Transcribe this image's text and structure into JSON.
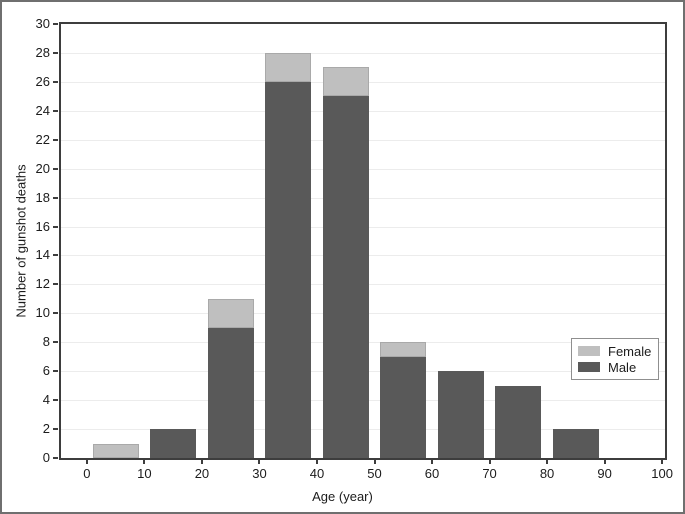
{
  "chart_data": {
    "type": "bar",
    "stacked": true,
    "categories": [
      "0-10",
      "10-20",
      "20-30",
      "30-40",
      "40-50",
      "50-60",
      "60-70",
      "70-80",
      "80-90"
    ],
    "series": [
      {
        "name": "Male",
        "color": "#595959",
        "values": [
          0,
          2,
          9,
          26,
          25,
          7,
          6,
          5,
          2
        ]
      },
      {
        "name": "Female",
        "color": "#bfbfbf",
        "values": [
          1,
          0,
          2,
          2,
          2,
          1,
          0,
          0,
          0
        ]
      }
    ],
    "title": "",
    "xlabel": "Age (year)",
    "ylabel": "Number of gunshot deaths",
    "xlim": [
      -4.5,
      100.5
    ],
    "ylim": [
      0,
      30
    ],
    "x_ticks": [
      0,
      10,
      20,
      30,
      40,
      50,
      60,
      70,
      80,
      90,
      100
    ],
    "y_tick_step": 2,
    "bar_bin_width": 10,
    "bar_inner_margin": 1,
    "grid": "horizontal",
    "gridline_color": "#ececec",
    "axis_color": "#3d3d3d",
    "legend": {
      "position": "inside-right",
      "items": [
        {
          "label": "Female",
          "color": "#bfbfbf"
        },
        {
          "label": "Male",
          "color": "#595959"
        }
      ]
    }
  }
}
